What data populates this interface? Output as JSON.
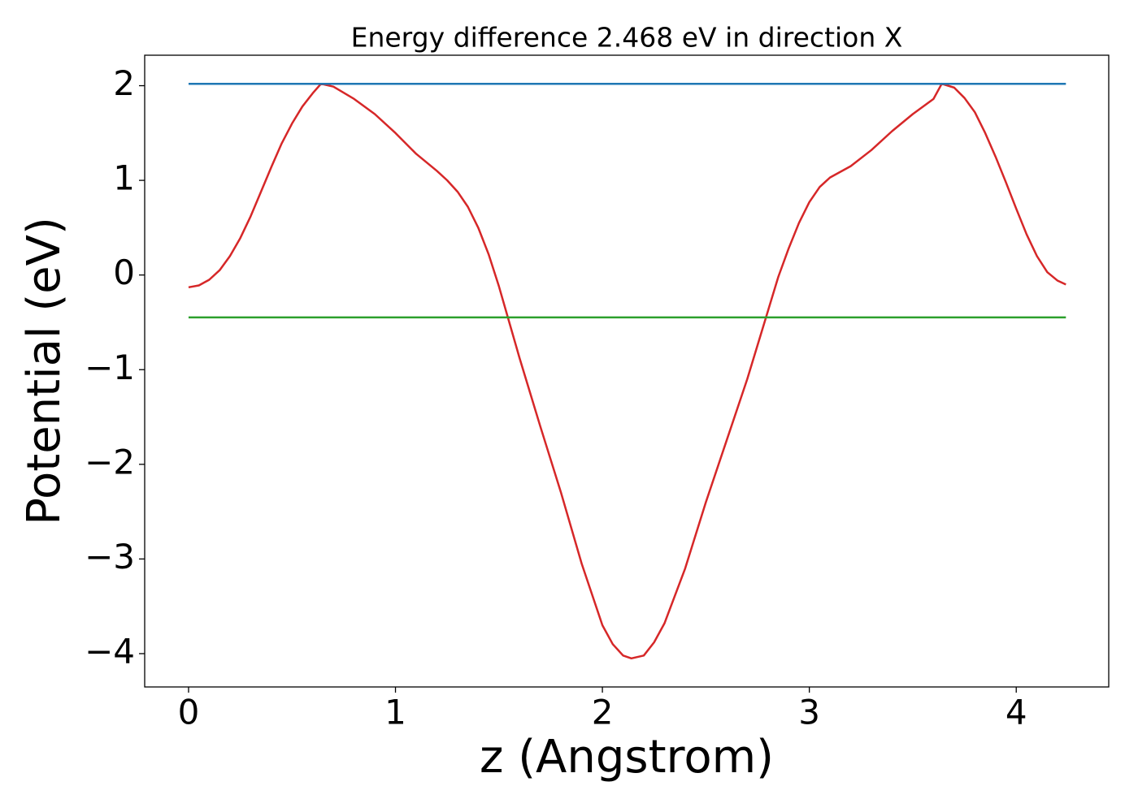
{
  "chart_data": {
    "type": "line",
    "title": "Energy difference 2.468 eV in direction X",
    "xlabel": "z (Angstrom)",
    "ylabel": "Potential (eV)",
    "xlim": [
      -0.212,
      4.447
    ],
    "ylim": [
      -4.352,
      2.322
    ],
    "xticks": [
      0,
      1,
      2,
      3,
      4
    ],
    "yticks": [
      {
        "value": -4,
        "label": "−4"
      },
      {
        "value": -3,
        "label": "−3"
      },
      {
        "value": -2,
        "label": "−2"
      },
      {
        "value": -1,
        "label": "−1"
      },
      0,
      1,
      2
    ],
    "series": [
      {
        "color": "#d62728",
        "x": [
          0,
          0.05,
          0.1,
          0.15,
          0.2,
          0.25,
          0.3,
          0.35,
          0.4,
          0.45,
          0.5,
          0.55,
          0.6,
          0.64,
          0.7,
          0.8,
          0.9,
          1.0,
          1.1,
          1.2,
          1.25,
          1.3,
          1.35,
          1.4,
          1.45,
          1.5,
          1.55,
          1.6,
          1.7,
          1.8,
          1.9,
          2.0,
          2.05,
          2.1,
          2.14,
          2.2,
          2.25,
          2.3,
          2.4,
          2.5,
          2.6,
          2.7,
          2.8,
          2.85,
          2.9,
          2.95,
          3.0,
          3.05,
          3.1,
          3.2,
          3.3,
          3.4,
          3.5,
          3.6,
          3.64,
          3.7,
          3.75,
          3.8,
          3.85,
          3.9,
          3.95,
          4.0,
          4.05,
          4.1,
          4.15,
          4.2,
          4.24
        ],
        "values": [
          -0.13,
          -0.11,
          -0.05,
          0.05,
          0.2,
          0.39,
          0.62,
          0.88,
          1.14,
          1.39,
          1.6,
          1.78,
          1.92,
          2.02,
          1.99,
          1.86,
          1.7,
          1.5,
          1.28,
          1.1,
          1.0,
          0.88,
          0.72,
          0.5,
          0.22,
          -0.12,
          -0.5,
          -0.88,
          -1.6,
          -2.3,
          -3.05,
          -3.7,
          -3.9,
          -4.02,
          -4.05,
          -4.02,
          -3.88,
          -3.68,
          -3.1,
          -2.4,
          -1.75,
          -1.1,
          -0.38,
          -0.02,
          0.28,
          0.55,
          0.77,
          0.93,
          1.03,
          1.15,
          1.32,
          1.52,
          1.7,
          1.86,
          2.02,
          1.98,
          1.87,
          1.72,
          1.5,
          1.25,
          0.98,
          0.7,
          0.43,
          0.2,
          0.03,
          -0.06,
          -0.1
        ]
      },
      {
        "color": "#1f77b4",
        "x": [
          0,
          4.24
        ],
        "values": [
          2.02,
          2.02
        ]
      },
      {
        "color": "#2ca02c",
        "x": [
          0,
          4.24
        ],
        "values": [
          -0.448,
          -0.448
        ]
      }
    ]
  }
}
